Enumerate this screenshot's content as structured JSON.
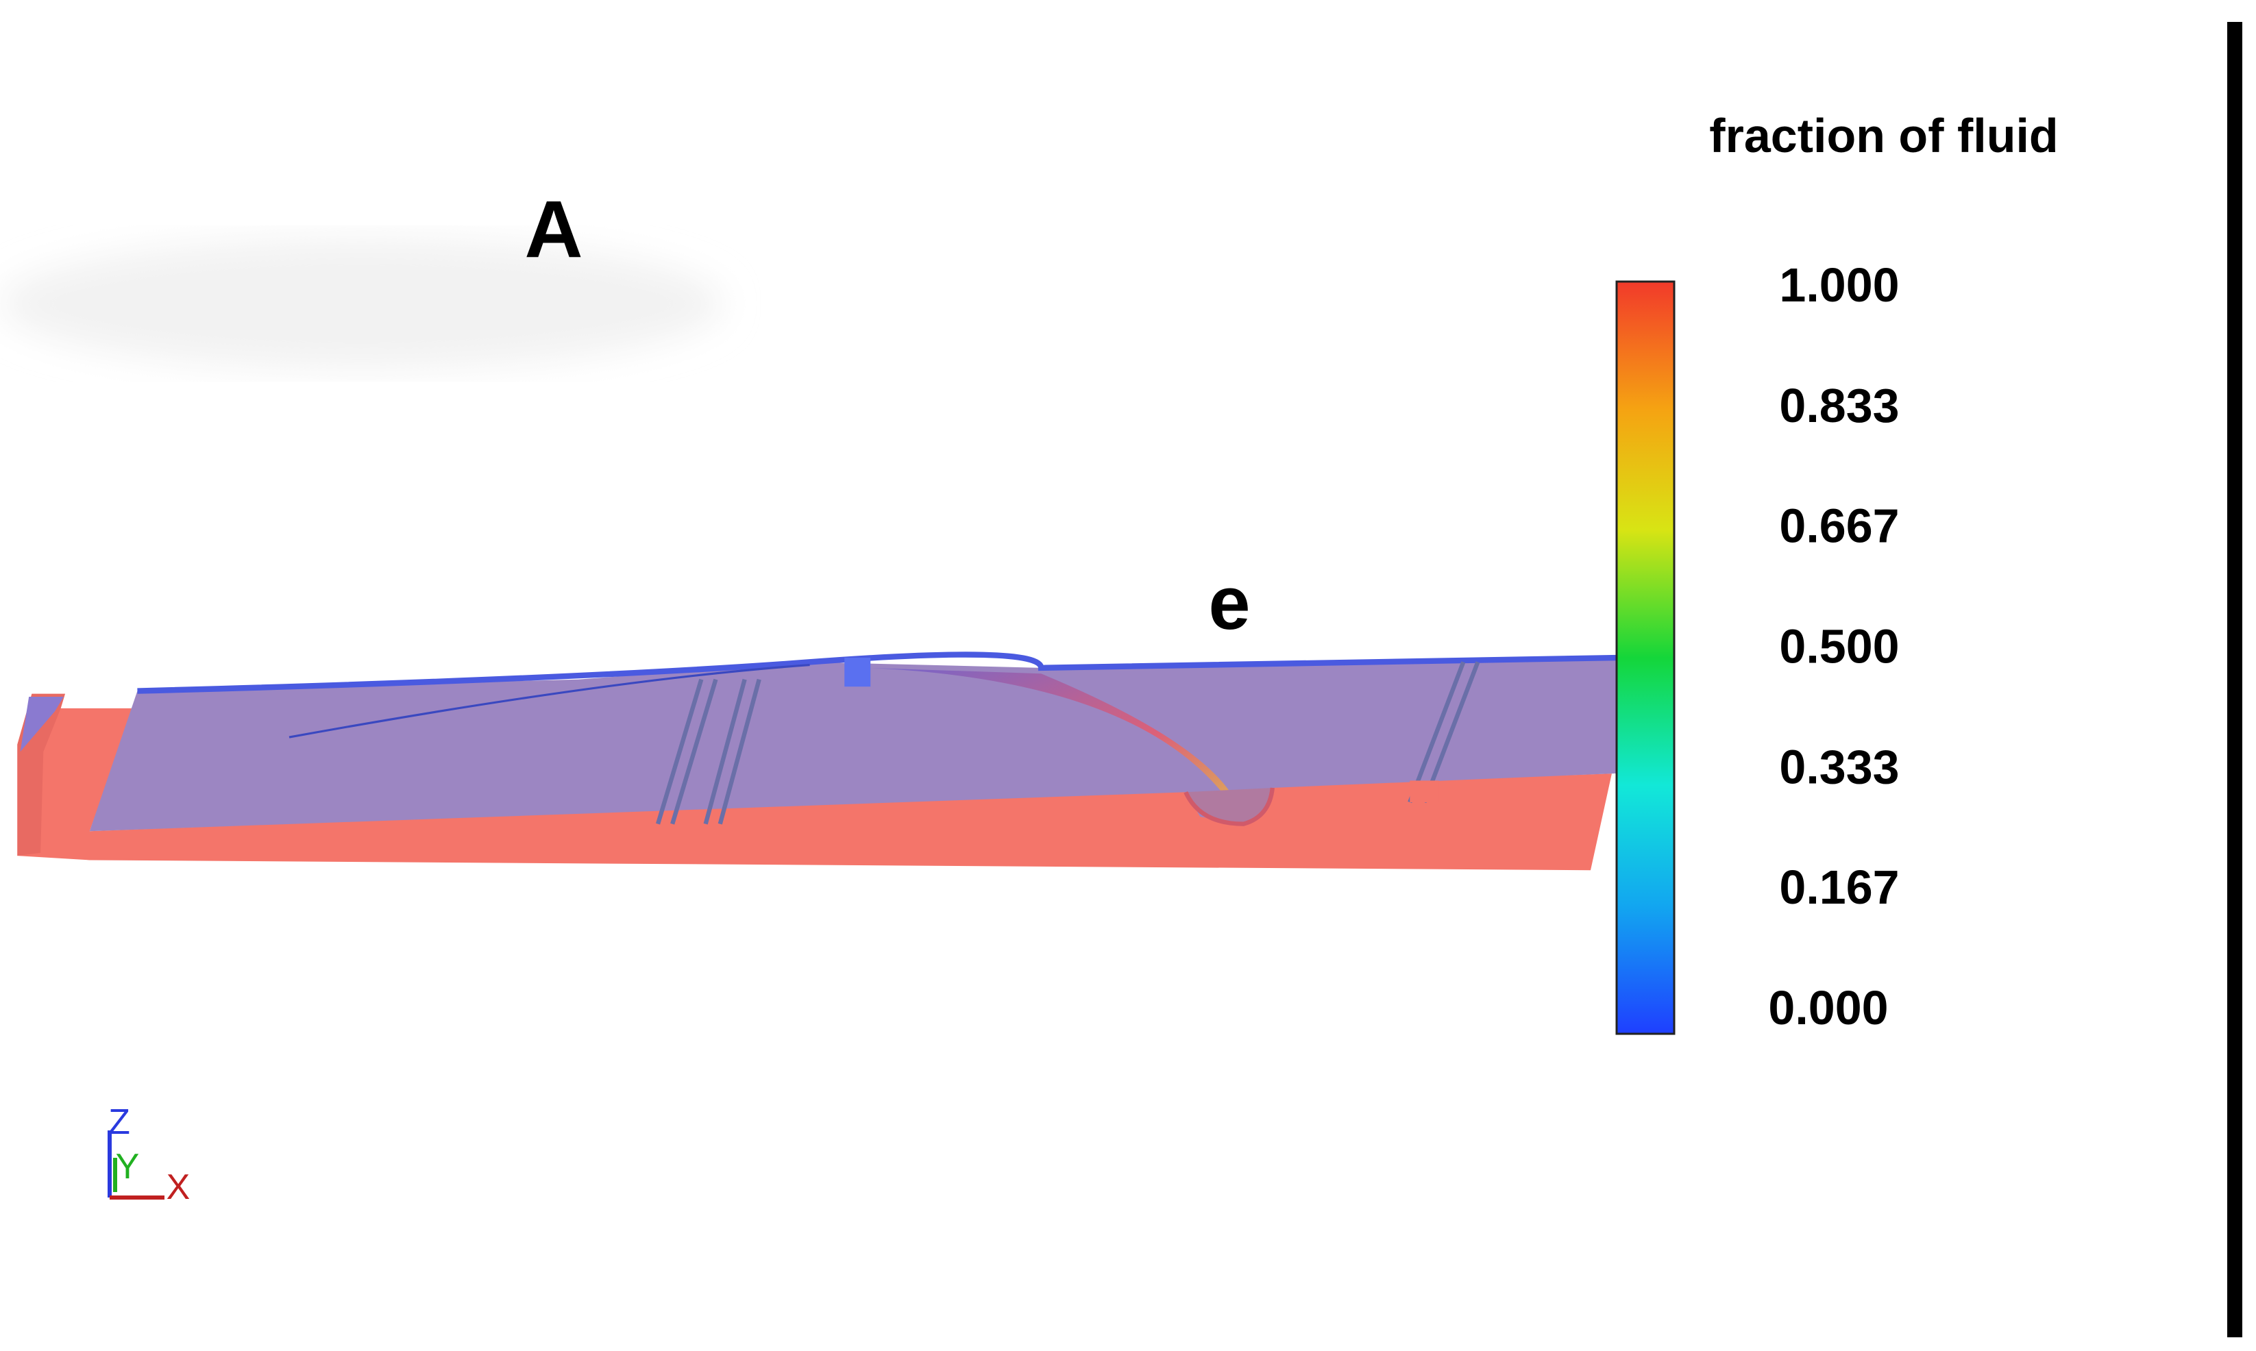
{
  "labels": {
    "a": "A",
    "e": "e"
  },
  "colorbar": {
    "title": "fraction of fluid",
    "ticks": [
      "1.000",
      "0.833",
      "0.667",
      "0.500",
      "0.333",
      "0.167",
      "0.000"
    ]
  },
  "triad": {
    "z": "Z",
    "y": "Y",
    "x": "X"
  }
}
